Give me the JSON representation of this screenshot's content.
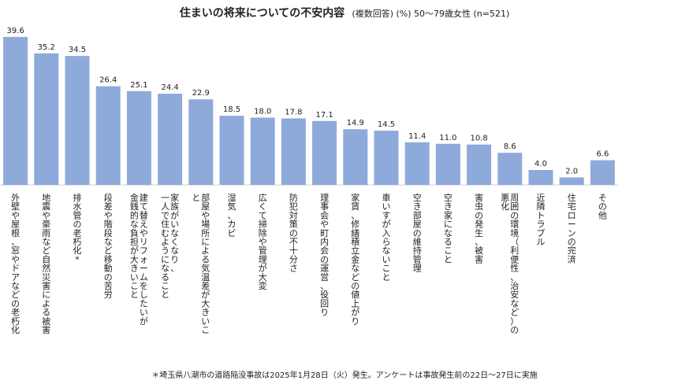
{
  "chart_data": {
    "type": "bar",
    "title": "住まいの将来についての不安内容",
    "subtitle": "(複数回答) (%) 50～79歳女性 (n=521)",
    "ylim": [
      0,
      40
    ],
    "grid": false,
    "bar_color": "#8eaadb",
    "categories": [
      "外壁や屋根、窓やドアなどの老朽化",
      "地震や豪雨など自然災害による被害",
      "排水管の老朽化*",
      "段差や階段など移動の苦労",
      "建て替えやリフォームをしたいが|金銭的な負担が大きいこと",
      "家族がいなくなり、|一人で住むようになること",
      "部屋や場所による気温差が大きいこ|と",
      "湿気、カビ",
      "広くて掃除や管理が大変",
      "防犯対策の不十分さ",
      "理事会や町内会の運営、役回り",
      "家賃、修繕積立金などの値上がり",
      "車いすが入らないこと",
      "空き部屋の維持管理",
      "空き家になること",
      "害虫の発生、被害",
      "周囲の環境（利便性、治安など）の|悪化",
      "近隣トラブル",
      "住宅ローンの完済",
      "その他"
    ],
    "values": [
      39.6,
      35.2,
      34.5,
      26.4,
      25.1,
      24.4,
      22.9,
      18.5,
      18.0,
      17.8,
      17.1,
      14.9,
      14.5,
      11.4,
      11.0,
      10.8,
      8.6,
      4.0,
      2.0,
      6.6
    ],
    "value_labels": [
      "39.6",
      "35.2",
      "34.5",
      "26.4",
      "25.1",
      "24.4",
      "22.9",
      "18.5",
      "18.0",
      "17.8",
      "17.1",
      "14.9",
      "14.5",
      "11.4",
      "11.0",
      "10.8",
      "8.6",
      "4.0",
      "2.0",
      "6.6"
    ]
  },
  "footnote": "＊埼玉県八潮市の道路陥没事故は2025年1月28日（火）発生。アンケートは事故発生前の22日～27日に実施"
}
